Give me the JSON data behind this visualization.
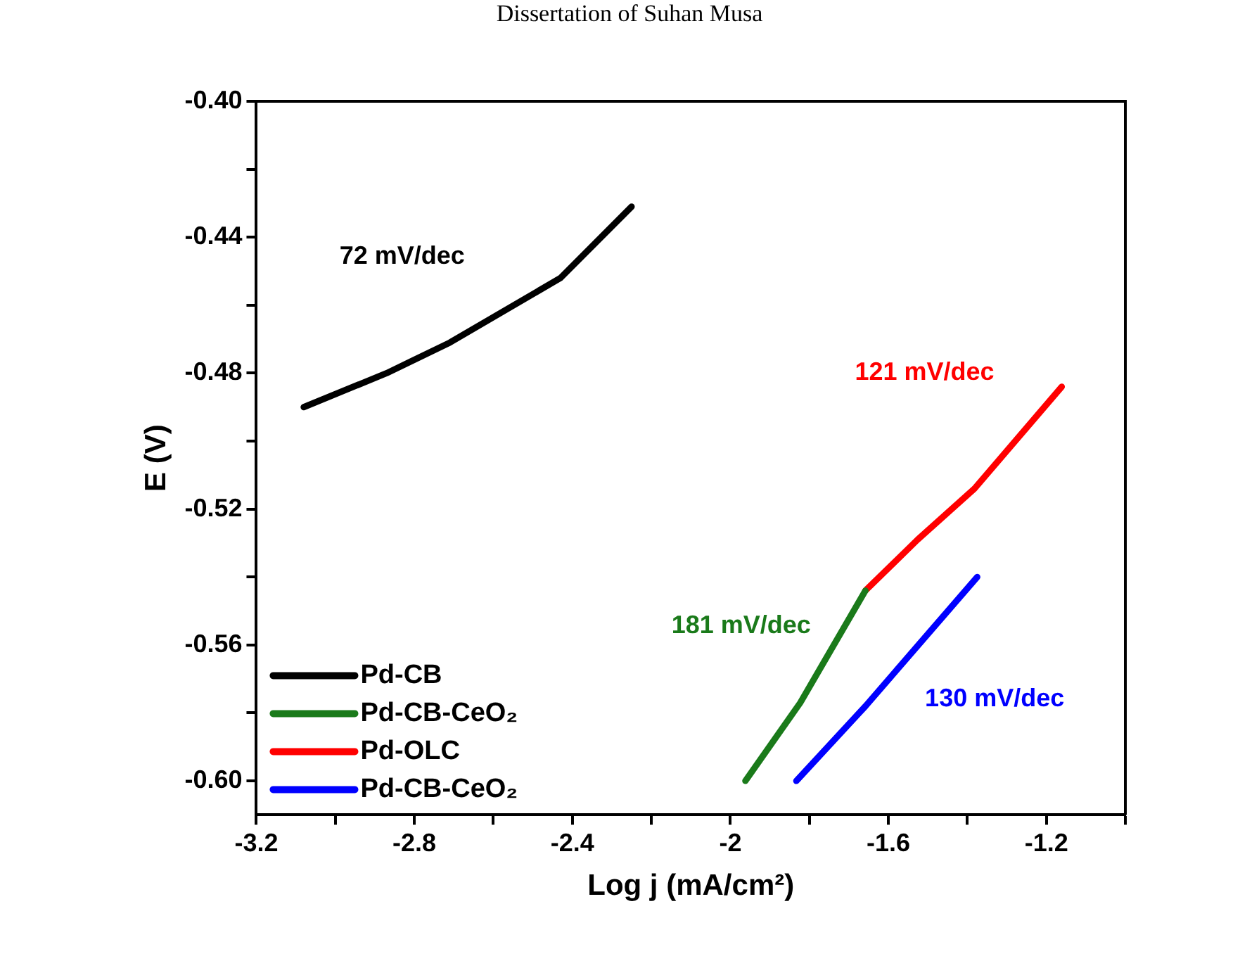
{
  "chart_data": {
    "type": "line",
    "xlabel": "Log j (mA/cm²)",
    "ylabel": "E (V)",
    "xlim": [
      -3.2,
      -1.0
    ],
    "ylim": [
      -0.61,
      -0.4
    ],
    "xticks": [
      -3.2,
      {
        "value": -3.0,
        "label": null
      },
      -2.8,
      {
        "value": -2.6,
        "label": null
      },
      -2.4,
      {
        "value": -2.2,
        "label": null
      },
      -2.0,
      {
        "value": -1.8,
        "label": null
      },
      -1.6,
      {
        "value": -1.4,
        "label": null
      },
      -1.2,
      {
        "value": -1.0,
        "label": null
      }
    ],
    "yticks": [
      {
        "value": -0.6,
        "label": "-0.60"
      },
      {
        "value": -0.58,
        "label": null
      },
      {
        "value": -0.56,
        "label": "-0.56"
      },
      {
        "value": -0.54,
        "label": null
      },
      {
        "value": -0.52,
        "label": "-0.52"
      },
      {
        "value": -0.5,
        "label": null
      },
      {
        "value": -0.48,
        "label": "-0.48"
      },
      {
        "value": -0.46,
        "label": null
      },
      {
        "value": -0.44,
        "label": "-0.44"
      },
      {
        "value": -0.42,
        "label": null
      },
      {
        "value": -0.4,
        "label": "-0.40"
      }
    ],
    "grid": false,
    "legend": "bottom left",
    "marker": "none",
    "line_style": "solid",
    "series": [
      {
        "name": "Pd-CB",
        "color": "#000000",
        "x": [
          -3.08,
          -2.87,
          -2.71,
          -2.43,
          -2.25
        ],
        "values": [
          -0.49,
          -0.48,
          -0.471,
          -0.452,
          -0.431
        ]
      },
      {
        "name": "Pd-CB-CeO₂",
        "color": "#1a7a1a",
        "x": [
          -1.962,
          -1.823,
          -1.658
        ],
        "values": [
          -0.6,
          -0.577,
          -0.544
        ]
      },
      {
        "name": "Pd-OLC",
        "color": "#ff0000",
        "x": [
          -1.658,
          -1.526,
          -1.382,
          -1.161
        ],
        "values": [
          -0.544,
          -0.529,
          -0.514,
          -0.484
        ]
      },
      {
        "name": "Pd-CB-CeO₂",
        "color": "#0000ff",
        "x": [
          -1.833,
          -1.658,
          -1.375
        ],
        "values": [
          -0.6,
          -0.578,
          -0.54
        ]
      }
    ],
    "annotations": [
      "72 mV/dec",
      "181 mV/dec",
      "121 mV/dec",
      "130 mV/dec",
      "Dissertation of Suhan Musa"
    ]
  }
}
